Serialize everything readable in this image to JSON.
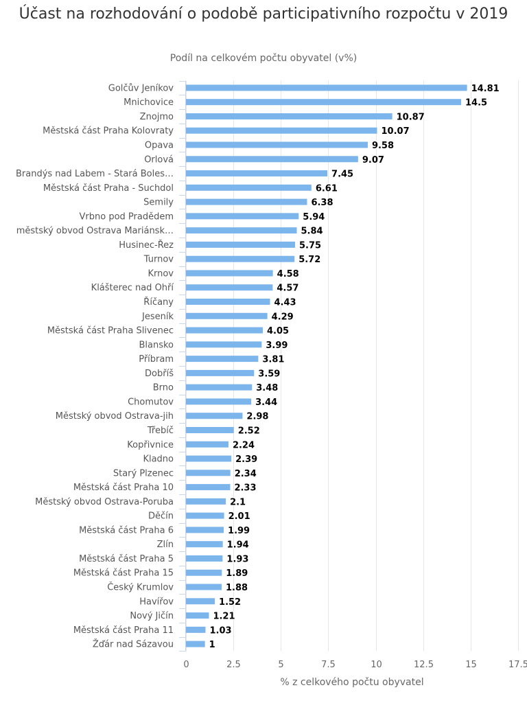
{
  "chart_data": {
    "type": "bar",
    "orientation": "horizontal",
    "title": "Účast na rozhodování o podobě participativního rozpočtu v 2019",
    "subtitle": "Podíl na celkovém počtu obyvatel (v%)",
    "xlabel": "% z celkového počtu obyvatel",
    "ylabel": "",
    "xlim": [
      0,
      17.5
    ],
    "ticks": [
      "0",
      "2.5",
      "5",
      "7.5",
      "10",
      "12.5",
      "15",
      "17.5"
    ],
    "grid": true,
    "bar_color": "#7cb5ec",
    "categories": [
      "Golčův Jeníkov",
      "Mnichovice",
      "Znojmo",
      "Městská část Praha Kolovraty",
      "Opava",
      "Orlová",
      "Brandýs nad Labem - Stará Boles…",
      "Městská část Praha - Suchdol",
      "Semily",
      "Vrbno pod Pradědem",
      "městský obvod Ostrava Mariánsk…",
      "Husinec-Řez",
      "Turnov",
      "Krnov",
      "Klášterec nad Ohří",
      "Říčany",
      "Jeseník",
      "Městská část Praha Slivenec",
      "Blansko",
      "Příbram",
      "Dobříš",
      "Brno",
      "Chomutov",
      "Městský obvod Ostrava-jih",
      "Třebíč",
      "Kopřivnice",
      "Kladno",
      "Starý Plzenec",
      "Městská část Praha 10",
      "Městský obvod Ostrava-Poruba",
      "Děčín",
      "Městská část Praha 6",
      "Zlín",
      "Městská část Praha 5",
      "Městská část Praha 15",
      "Český Krumlov",
      "Havířov",
      "Nový Jičín",
      "Městská část Praha 11",
      "Žďár nad Sázavou"
    ],
    "values": [
      14.81,
      14.5,
      10.87,
      10.07,
      9.58,
      9.07,
      7.45,
      6.61,
      6.38,
      5.94,
      5.84,
      5.75,
      5.72,
      4.58,
      4.57,
      4.43,
      4.29,
      4.05,
      3.99,
      3.81,
      3.59,
      3.48,
      3.44,
      2.98,
      2.52,
      2.24,
      2.39,
      2.34,
      2.33,
      2.1,
      2.01,
      1.99,
      1.94,
      1.93,
      1.89,
      1.88,
      1.52,
      1.21,
      1.03,
      1
    ]
  }
}
